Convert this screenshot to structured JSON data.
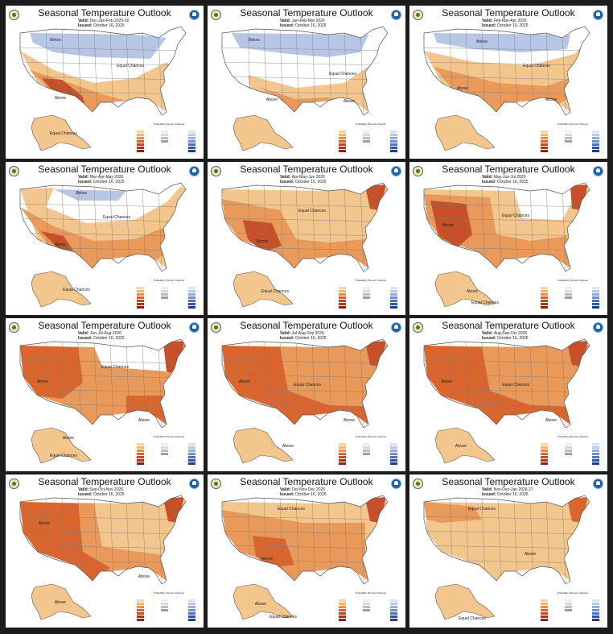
{
  "panels": [
    {
      "title": "Seasonal Temperature Outlook",
      "valid_label": "Valid:",
      "valid": "Dec-Jan-Feb 2025-26",
      "issued_label": "Issued:",
      "issued": "October 16, 2025",
      "region_labels": [
        "Below",
        "Equal Chances",
        "Above",
        "Equal Chances"
      ]
    },
    {
      "title": "Seasonal Temperature Outlook",
      "valid_label": "Valid:",
      "valid": "Jan-Feb-Mar 2026",
      "issued_label": "Issued:",
      "issued": "October 16, 2025",
      "region_labels": [
        "Below",
        "Equal Chances",
        "Above",
        "Above"
      ]
    },
    {
      "title": "Seasonal Temperature Outlook",
      "valid_label": "Valid:",
      "valid": "Feb-Mar-Apr 2026",
      "issued_label": "Issued:",
      "issued": "October 16, 2025",
      "region_labels": [
        "Below",
        "Equal Chances",
        "Above",
        "Above"
      ]
    },
    {
      "title": "Seasonal Temperature Outlook",
      "valid_label": "Valid:",
      "valid": "Mar-Apr-May 2026",
      "issued_label": "Issued:",
      "issued": "October 16, 2025",
      "region_labels": [
        "Below",
        "Equal Chances",
        "Above",
        "Equal Chances"
      ]
    },
    {
      "title": "Seasonal Temperature Outlook",
      "valid_label": "Valid:",
      "valid": "Apr-May-Jun 2026",
      "issued_label": "Issued:",
      "issued": "October 16, 2025",
      "region_labels": [
        "Equal Chances",
        "Above",
        "Equal Chances"
      ]
    },
    {
      "title": "Seasonal Temperature Outlook",
      "valid_label": "Valid:",
      "valid": "May-Jun-Jul 2026",
      "issued_label": "Issued:",
      "issued": "October 16, 2025",
      "region_labels": [
        "Above",
        "Equal Chances",
        "Above",
        "Equal Chances"
      ]
    },
    {
      "title": "Seasonal Temperature Outlook",
      "valid_label": "Valid:",
      "valid": "Jun-Jul-Aug 2026",
      "issued_label": "Issued:",
      "issued": "October 16, 2025",
      "region_labels": [
        "Above",
        "Equal Chances",
        "Above",
        "Above",
        "Equal Chances"
      ]
    },
    {
      "title": "Seasonal Temperature Outlook",
      "valid_label": "Valid:",
      "valid": "Jul-Aug-Sep 2026",
      "issued_label": "Issued:",
      "issued": "October 16, 2025",
      "region_labels": [
        "Above",
        "Equal Chances",
        "Above",
        "Above"
      ]
    },
    {
      "title": "Seasonal Temperature Outlook",
      "valid_label": "Valid:",
      "valid": "Aug-Sep-Oct 2026",
      "issued_label": "Issued:",
      "issued": "October 16, 2025",
      "region_labels": [
        "Above",
        "Equal Chances",
        "Above",
        "Above"
      ]
    },
    {
      "title": "Seasonal Temperature Outlook",
      "valid_label": "Valid:",
      "valid": "Sep-Oct-Nov 2026",
      "issued_label": "Issued:",
      "issued": "October 16, 2025",
      "region_labels": [
        "Above",
        "Above",
        "Above"
      ]
    },
    {
      "title": "Seasonal Temperature Outlook",
      "valid_label": "Valid:",
      "valid": "Oct-Nov-Dec 2026",
      "issued_label": "Issued:",
      "issued": "October 16, 2025",
      "region_labels": [
        "Equal Chances",
        "Above",
        "Above",
        "Equal Chances"
      ]
    },
    {
      "title": "Seasonal Temperature Outlook",
      "valid_label": "Valid:",
      "valid": "Nov-Dec-Jan 2026-27",
      "issued_label": "Issued:",
      "issued": "October 16, 2025",
      "region_labels": [
        "Equal Chances",
        "Above",
        "Equal Chances"
      ]
    }
  ],
  "legend": {
    "title": "Probability (Percent Chance)",
    "above_label": "Above",
    "below_label": "Below",
    "leaning_label": "Leaning",
    "near_label": "Near",
    "likely_label": "Likely",
    "colors": {
      "above": [
        "#f6d4a3",
        "#f0b56f",
        "#e58d4a",
        "#d8632c",
        "#c04a1f",
        "#a8361a",
        "#8a2512"
      ],
      "below": [
        "#dbe3f3",
        "#b7c7e8",
        "#93acdc",
        "#6f8fd0",
        "#4b72c4",
        "#2f55a8",
        "#1f3c85"
      ],
      "near": [
        "#eeeeee",
        "#d9d9d9",
        "#bdbdbd",
        "#9e9e9e"
      ]
    }
  },
  "map_colors": {
    "equal": "#ffffff",
    "below_light": "#b8c6e6",
    "above_light": "#f3c68e",
    "above_mid": "#e9995a",
    "above_dark": "#d9662e",
    "above_darker": "#c6502a",
    "outline": "#555555"
  }
}
